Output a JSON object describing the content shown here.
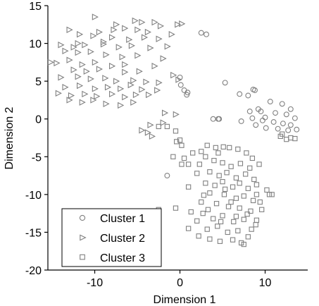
{
  "chart_data": {
    "type": "scatter",
    "title": "",
    "xlabel": "Dimension 1",
    "ylabel": "Dimension 2",
    "xlim": [
      -15.5,
      15
    ],
    "ylim": [
      -20,
      15
    ],
    "xticks": [
      -10,
      0,
      10
    ],
    "yticks": [
      15,
      10,
      5,
      0,
      -5,
      -10,
      -15,
      -20
    ],
    "grid": false,
    "legend_position": "bottom-left",
    "colors": {
      "marker": "#808080",
      "axis": "#000000"
    },
    "series": [
      {
        "name": "Cluster 1",
        "marker": "circle",
        "points": [
          [
            2.5,
            11.4
          ],
          [
            3.1,
            11.2
          ],
          [
            0,
            5.5
          ],
          [
            0.1,
            4.5
          ],
          [
            0.5,
            3.8
          ],
          [
            0.8,
            3.2
          ],
          [
            0.9,
            3.5
          ],
          [
            5.3,
            4.8
          ],
          [
            7.0,
            3.3
          ],
          [
            8.0,
            3.1
          ],
          [
            8.6,
            3.9
          ],
          [
            8.8,
            3.8
          ],
          [
            12.0,
            2.0
          ],
          [
            13.0,
            1.3
          ],
          [
            9.2,
            1.3
          ],
          [
            10.6,
            2.3
          ],
          [
            8.2,
            1.0
          ],
          [
            9.5,
            1.0
          ],
          [
            10.0,
            0.2
          ],
          [
            11.2,
            0.8
          ],
          [
            12.5,
            0.6
          ],
          [
            13.5,
            0.1
          ],
          [
            7.2,
            -0.3
          ],
          [
            8.5,
            0.1
          ],
          [
            9.7,
            -0.2
          ],
          [
            11.0,
            -0.4
          ],
          [
            12.1,
            -0.6
          ],
          [
            13.0,
            -0.8
          ],
          [
            8.9,
            -0.8
          ],
          [
            10.1,
            -1.2
          ],
          [
            11.5,
            -1.3
          ],
          [
            12.7,
            -1.5
          ],
          [
            3.9,
            0
          ],
          [
            4.5,
            0
          ],
          [
            4.6,
            0
          ],
          [
            -1.5,
            -7.5
          ],
          [
            13.7,
            -1.4
          ]
        ]
      },
      {
        "name": "Cluster 2",
        "marker": "triangle",
        "points": [
          [
            -10.0,
            13.5
          ],
          [
            -5.3,
            13.0
          ],
          [
            -4.5,
            12.8
          ],
          [
            -7.5,
            12.5
          ],
          [
            -3.0,
            12.8
          ],
          [
            -2.3,
            12.3
          ],
          [
            -0.3,
            12.5
          ],
          [
            0.2,
            12.6
          ],
          [
            -13.0,
            11.8
          ],
          [
            -9.5,
            11.5
          ],
          [
            -6.5,
            12.0
          ],
          [
            -5.0,
            11.8
          ],
          [
            -3.8,
            11.5
          ],
          [
            -11.8,
            11.2
          ],
          [
            -10.2,
            11.0
          ],
          [
            -8.0,
            10.8
          ],
          [
            -6.0,
            10.5
          ],
          [
            -4.2,
            10.8
          ],
          [
            -2.5,
            10.6
          ],
          [
            -1.0,
            11.2
          ],
          [
            -14.0,
            9.8
          ],
          [
            -12.5,
            9.5
          ],
          [
            -11.2,
            9.8
          ],
          [
            -9.0,
            9.9
          ],
          [
            -7.2,
            9.5
          ],
          [
            -5.7,
            9.7
          ],
          [
            -3.5,
            9.4
          ],
          [
            -13.5,
            9.0
          ],
          [
            -12.0,
            8.8
          ],
          [
            -10.5,
            8.9
          ],
          [
            -8.7,
            8.5
          ],
          [
            -6.8,
            8.2
          ],
          [
            -5.0,
            8.4
          ],
          [
            -2.0,
            8.0
          ],
          [
            -15.2,
            7.5
          ],
          [
            -14.5,
            7.4
          ],
          [
            -13.0,
            7.8
          ],
          [
            -11.5,
            7.2
          ],
          [
            -10.0,
            7.5
          ],
          [
            -8.0,
            7.0
          ],
          [
            -6.5,
            7.2
          ],
          [
            -3.0,
            7.0
          ],
          [
            -12.5,
            6.5
          ],
          [
            -11.0,
            6.3
          ],
          [
            -9.5,
            6.6
          ],
          [
            -6.5,
            6.2
          ],
          [
            -4.8,
            6.3
          ],
          [
            -14.0,
            5.5
          ],
          [
            -12.0,
            5.6
          ],
          [
            -10.5,
            5.3
          ],
          [
            -8.8,
            5.4
          ],
          [
            -7.5,
            5.0
          ],
          [
            -5.5,
            5.1
          ],
          [
            -4.0,
            4.9
          ],
          [
            -2.5,
            4.8
          ],
          [
            -0.8,
            5.8
          ],
          [
            -0.2,
            5.2
          ],
          [
            -13.5,
            4.2
          ],
          [
            -11.8,
            4.4
          ],
          [
            -10.0,
            4.0
          ],
          [
            -8.5,
            4.2
          ],
          [
            -7.0,
            4.0
          ],
          [
            -5.8,
            4.5
          ],
          [
            -4.5,
            3.9
          ],
          [
            -2.7,
            3.8
          ],
          [
            -14.3,
            3.4
          ],
          [
            -12.8,
            3.1
          ],
          [
            -11.2,
            3.3
          ],
          [
            -9.8,
            3.0
          ],
          [
            -8.0,
            3.3
          ],
          [
            -6.5,
            2.9
          ],
          [
            -5.2,
            3.2
          ],
          [
            -3.7,
            3.2
          ],
          [
            -13.0,
            2.5
          ],
          [
            -11.5,
            2.2
          ],
          [
            -10.2,
            2.5
          ],
          [
            -8.7,
            2.0
          ],
          [
            -7.0,
            1.8
          ],
          [
            -5.5,
            2.2
          ],
          [
            -1.8,
            0.8
          ],
          [
            -0.5,
            0.6
          ],
          [
            -2.0,
            -0.5
          ],
          [
            -3.5,
            -0.8
          ],
          [
            -4.5,
            -1.5
          ],
          [
            -3.3,
            -2.3
          ],
          [
            -3.8,
            -1.8
          ],
          [
            -9.0,
            10.2
          ],
          [
            -7.8,
            11.8
          ],
          [
            -1.5,
            9.6
          ],
          [
            -12.0,
            10.0
          ]
        ]
      },
      {
        "name": "Cluster 3",
        "marker": "square",
        "points": [
          [
            -1.5,
            -1.0
          ],
          [
            -2.5,
            -1.0
          ],
          [
            -0.5,
            -1.6
          ],
          [
            0,
            -2.8
          ],
          [
            0.2,
            -3.5
          ],
          [
            -0.8,
            -5.0
          ],
          [
            0.5,
            -5.2
          ],
          [
            1.5,
            -4.5
          ],
          [
            2.5,
            -4.3
          ],
          [
            3.2,
            -3.5
          ],
          [
            4.2,
            -3.8
          ],
          [
            5.1,
            -3.7
          ],
          [
            5.8,
            -3.8
          ],
          [
            6.8,
            -4.0
          ],
          [
            7.8,
            -4.5
          ],
          [
            8.5,
            -5.2
          ],
          [
            1.0,
            -6.0
          ],
          [
            2.3,
            -6.0
          ],
          [
            3.0,
            -5.0
          ],
          [
            4.0,
            -5.5
          ],
          [
            5.0,
            -5.8
          ],
          [
            6.0,
            -6.3
          ],
          [
            7.1,
            -5.9
          ],
          [
            8.2,
            -6.5
          ],
          [
            9.3,
            -6.0
          ],
          [
            2.0,
            -7.2
          ],
          [
            3.5,
            -7.0
          ],
          [
            4.6,
            -7.5
          ],
          [
            5.5,
            -7.1
          ],
          [
            6.6,
            -7.8
          ],
          [
            7.7,
            -7.3
          ],
          [
            8.7,
            -8.0
          ],
          [
            3.0,
            -8.5
          ],
          [
            4.1,
            -8.8
          ],
          [
            5.0,
            -8.3
          ],
          [
            6.2,
            -9.0
          ],
          [
            7.0,
            -8.5
          ],
          [
            8.0,
            -9.2
          ],
          [
            9.0,
            -8.7
          ],
          [
            3.5,
            -9.8
          ],
          [
            5.2,
            -10.0
          ],
          [
            6.6,
            -10.5
          ],
          [
            7.5,
            -10.2
          ],
          [
            8.6,
            -10.8
          ],
          [
            10.5,
            -10.0
          ],
          [
            10.8,
            -10.0
          ],
          [
            2.5,
            -11.0
          ],
          [
            4.3,
            -11.2
          ],
          [
            5.7,
            -11.6
          ],
          [
            7.0,
            -11.8
          ],
          [
            8.3,
            -12.2
          ],
          [
            9.6,
            -12.0
          ],
          [
            -2.5,
            -12.0
          ],
          [
            -0.5,
            -11.8
          ],
          [
            1.3,
            -12.3
          ],
          [
            2.7,
            -12.5
          ],
          [
            3.9,
            -13.2
          ],
          [
            5.0,
            -12.8
          ],
          [
            6.3,
            -13.6
          ],
          [
            7.5,
            -13.3
          ],
          [
            8.9,
            -14.0
          ],
          [
            1.0,
            -14.5
          ],
          [
            2.0,
            -13.5
          ],
          [
            3.2,
            -14.6
          ],
          [
            4.4,
            -14.2
          ],
          [
            5.6,
            -15.0
          ],
          [
            6.8,
            -14.8
          ],
          [
            8.0,
            -15.6
          ],
          [
            9.0,
            -13.4
          ],
          [
            2.2,
            -15.5
          ],
          [
            3.5,
            -15.9
          ],
          [
            4.7,
            -16.2
          ],
          [
            6.2,
            -16.0
          ],
          [
            7.2,
            -16.4
          ],
          [
            7.5,
            -16.6
          ],
          [
            8.4,
            -14.6
          ],
          [
            5.3,
            -9.3
          ],
          [
            6.0,
            -11.0
          ],
          [
            2.8,
            -10.1
          ],
          [
            4.8,
            -13.6
          ],
          [
            7.9,
            -12.6
          ],
          [
            9.4,
            -11.0
          ],
          [
            10.2,
            -9.4
          ],
          [
            9.0,
            -10.0
          ],
          [
            6.6,
            -12.9
          ],
          [
            3.3,
            -12.0
          ],
          [
            12.5,
            -2.7
          ],
          [
            13.0,
            -2.5
          ],
          [
            13.5,
            -2.6
          ],
          [
            11.8,
            -2.3
          ],
          [
            12.0,
            -2.0
          ],
          [
            4.5,
            -4.5
          ],
          [
            1.0,
            -9.0
          ],
          [
            0.2,
            -6.0
          ],
          [
            -0.4,
            -3.0
          ]
        ]
      }
    ],
    "legend": [
      "Cluster 1",
      "Cluster 2",
      "Cluster 3"
    ]
  }
}
